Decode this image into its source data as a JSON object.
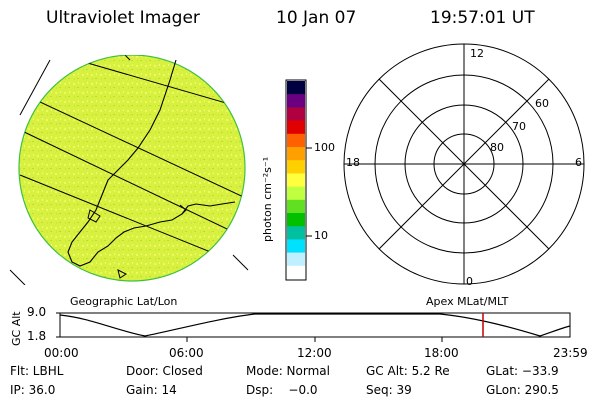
{
  "header": {
    "instrument": "Ultraviolet Imager",
    "date": "10 Jan 07",
    "time": "19:57:01 UT"
  },
  "colorbar": {
    "unit_label": "photon cm⁻²s⁻¹",
    "ticks": [
      "100",
      "10"
    ],
    "scale": "log",
    "colors": [
      "#000040",
      "#6a0080",
      "#b00040",
      "#e00000",
      "#ff6000",
      "#ffa000",
      "#ffd000",
      "#ffff40",
      "#c0ff40",
      "#60e020",
      "#00c000",
      "#00c0a0",
      "#00e0ff",
      "#c0f0ff",
      "#ffffff"
    ]
  },
  "polar_plot": {
    "clock_labels": {
      "top": "12",
      "left": "18",
      "right": "6",
      "bottom": "0"
    },
    "lat_labels": [
      "60",
      "70",
      "80"
    ]
  },
  "map_label": "Geographic Lat/Lon",
  "polar_label": "Apex MLat/MLT",
  "orbit_plot": {
    "axis_label": "GC Alt",
    "y_ticks": [
      "9.0",
      "1.8"
    ],
    "x_ticks": [
      "00:00",
      "06:00",
      "12:00",
      "18:00",
      "23:59"
    ],
    "current_time_marker_color": "#c00000"
  },
  "status": {
    "row1": {
      "filter": "Flt: LBHL",
      "door": "Door: Closed",
      "mode": "Mode: Normal",
      "gc_alt": "GC Alt: 5.2 Re",
      "glat": "GLat: −33.9"
    },
    "row2": {
      "ip": "IP: 36.0",
      "gain": "Gain: 14",
      "dsp": "Dsp:    −0.0",
      "seq": "Seq: 39",
      "glon": "GLon: 290.5"
    }
  }
}
